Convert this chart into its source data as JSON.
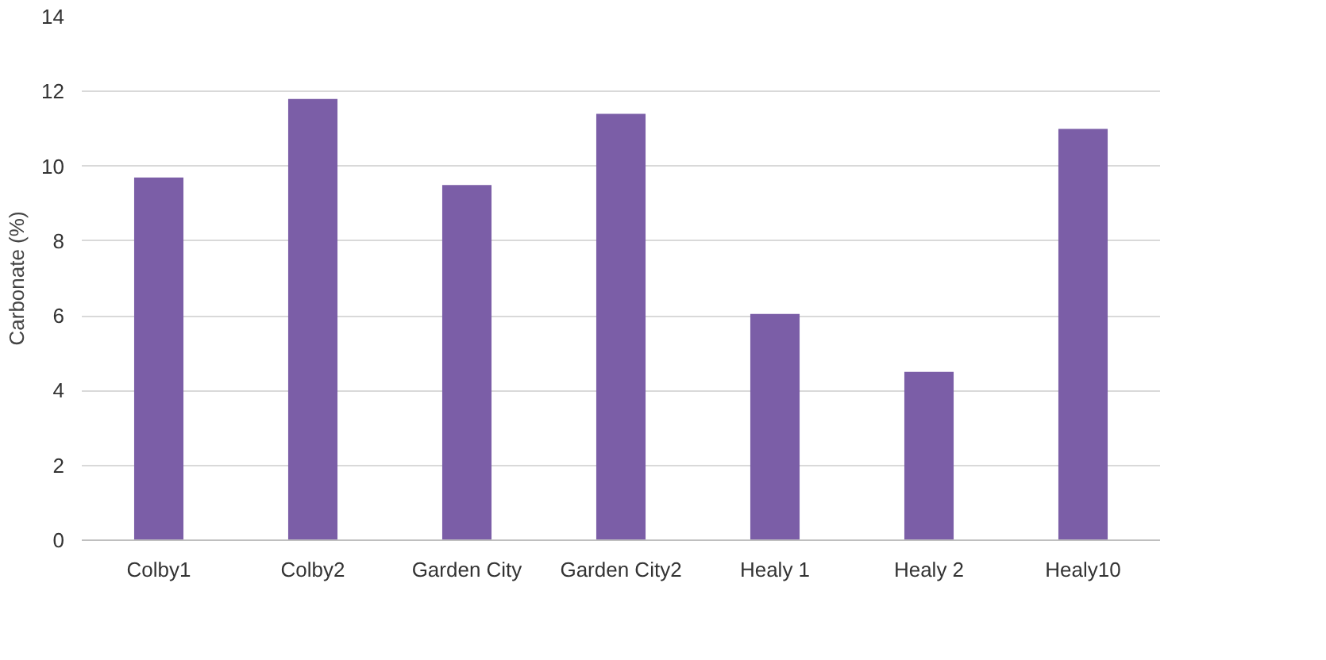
{
  "chart_data": {
    "type": "bar",
    "ylabel": "Carbonate (%)",
    "categories": [
      "Colby1",
      "Colby2",
      "Garden City",
      "Garden City2",
      "Healy 1",
      "Healy 2",
      "Healy10"
    ],
    "values": [
      9.7,
      11.8,
      9.5,
      11.4,
      6.05,
      4.5,
      11.0
    ],
    "color": "#7b5ea7",
    "ylim": [
      0,
      14
    ],
    "yticks": [
      0,
      2,
      4,
      6,
      8,
      10,
      12,
      14
    ],
    "grid": "y"
  }
}
